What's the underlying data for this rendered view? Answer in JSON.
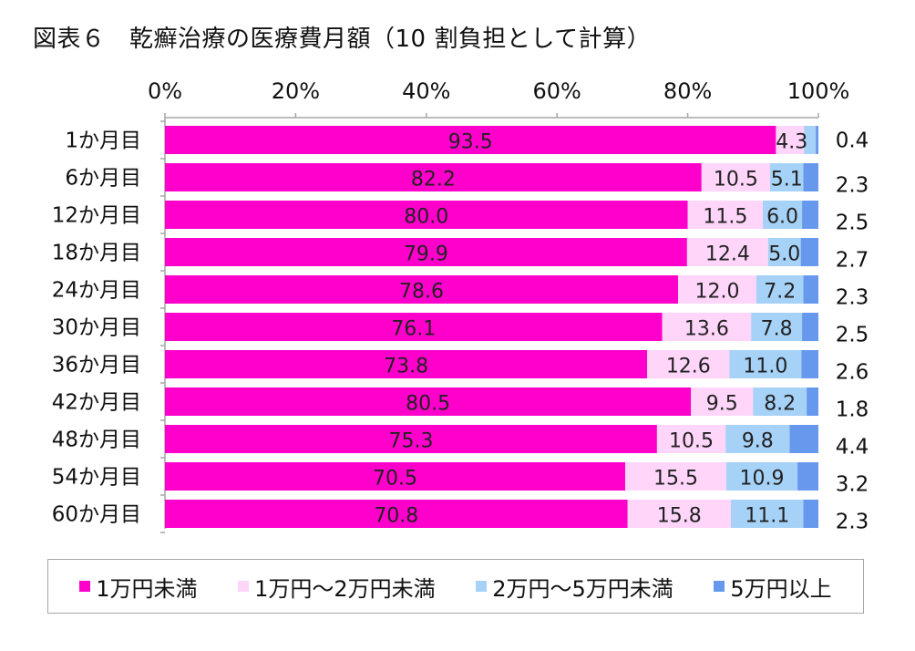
{
  "title": "図表６　乾癬治療の医療費月額（10 割負担として計算）",
  "chart_data": {
    "type": "bar",
    "orientation": "horizontal",
    "stacked": true,
    "percent": true,
    "categories": [
      "1か月目",
      "6か月目",
      "12か月目",
      "18か月目",
      "24か月目",
      "30か月目",
      "36か月目",
      "42か月目",
      "48か月目",
      "54か月目",
      "60か月目"
    ],
    "series": [
      {
        "name": "1万円未満",
        "color": "#ff00cc",
        "values": [
          93.5,
          82.2,
          80.0,
          79.9,
          78.6,
          76.1,
          73.8,
          80.5,
          75.3,
          70.5,
          70.8
        ],
        "labels": [
          "93.5",
          "82.2",
          "80.0",
          "79.9",
          "78.6",
          "76.1",
          "73.8",
          "80.5",
          "75.3",
          "70.5",
          "70.8"
        ]
      },
      {
        "name": "1万円～2万円未満",
        "color": "#ffd5fa",
        "values": [
          4.3,
          10.5,
          11.5,
          12.4,
          12.0,
          13.6,
          12.6,
          9.5,
          10.5,
          15.5,
          15.8
        ],
        "labels": [
          "4.3",
          "10.5",
          "11.5",
          "12.4",
          "12.0",
          "13.6",
          "12.6",
          "9.5",
          "10.5",
          "15.5",
          "15.8"
        ]
      },
      {
        "name": "2万円～5万円未満",
        "color": "#a6d2f8",
        "values": [
          1.8,
          5.1,
          6.0,
          5.0,
          7.2,
          7.8,
          11.0,
          8.2,
          9.8,
          10.9,
          11.1
        ],
        "labels": [
          "",
          "5.1",
          "6.0",
          "5.0",
          "7.2",
          "7.8",
          "11.0",
          "8.2",
          "9.8",
          "10.9",
          "11.1"
        ]
      },
      {
        "name": "5万円以上",
        "color": "#6699ee",
        "values": [
          0.4,
          2.3,
          2.5,
          2.7,
          2.3,
          2.5,
          2.6,
          1.8,
          4.4,
          3.2,
          2.3
        ],
        "labels": [
          "0.4",
          "2.3",
          "2.5",
          "2.7",
          "2.3",
          "2.5",
          "2.6",
          "1.8",
          "4.4",
          "3.2",
          "2.3"
        ]
      }
    ],
    "x_axis": {
      "range": [
        0,
        100
      ],
      "ticks": [
        0,
        20,
        40,
        60,
        80,
        100
      ],
      "tick_labels": [
        "0%",
        "20%",
        "40%",
        "60%",
        "80%",
        "100%"
      ],
      "position": "top"
    },
    "legend": {
      "position": "bottom",
      "boxed": true
    },
    "grid": false
  }
}
